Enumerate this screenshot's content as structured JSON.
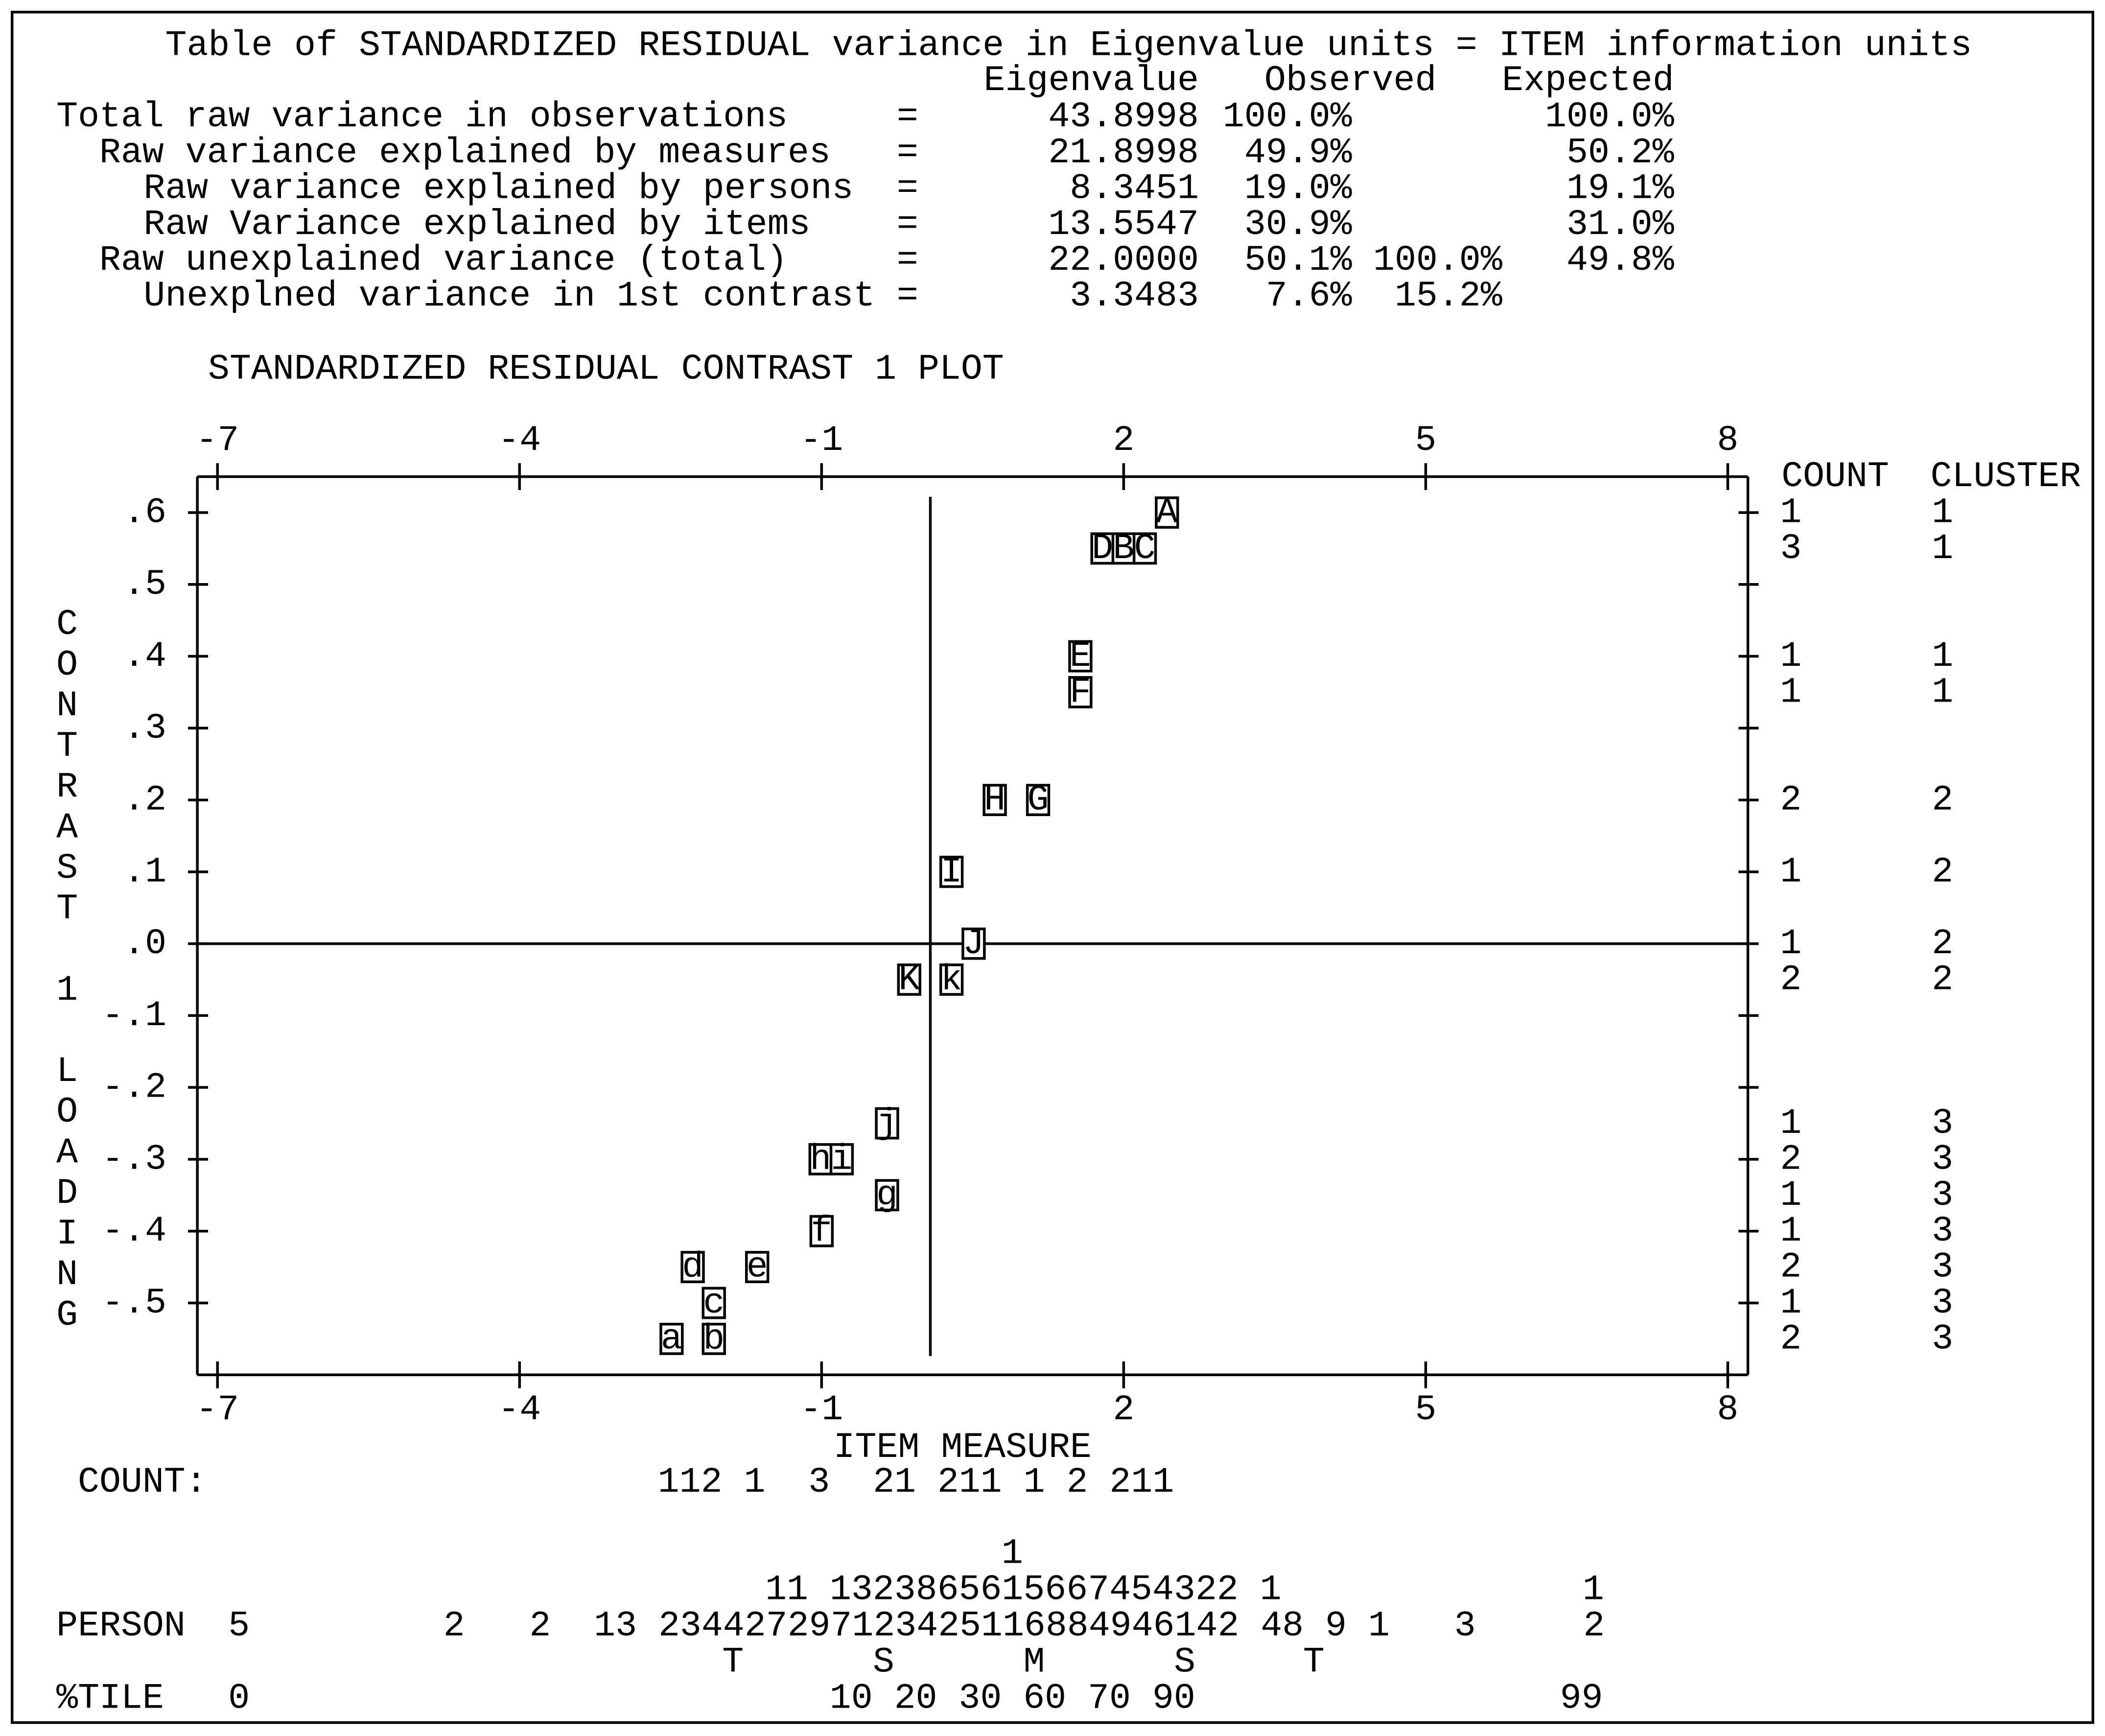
{
  "variance_table": {
    "title": "Table of STANDARDIZED RESIDUAL variance in Eigenvalue units = ITEM information units",
    "headers": [
      "Eigenvalue",
      "Observed",
      "Expected"
    ],
    "rows": [
      {
        "label": "Total raw variance in observations",
        "sign": "=",
        "eigenvalue": "43.8998",
        "observed": "100.0%",
        "expected": "100.0%"
      },
      {
        "label": "Raw variance explained by measures",
        "sign": "=",
        "eigenvalue": "21.8998",
        "observed": "49.9%",
        "expected": "50.2%"
      },
      {
        "label": "Raw variance explained by persons",
        "sign": "=",
        "eigenvalue": "8.3451",
        "observed": "19.0%",
        "expected": "19.1%"
      },
      {
        "label": "Raw Variance explained by items",
        "sign": "=",
        "eigenvalue": "13.5547",
        "observed": "30.9%",
        "expected": "31.0%"
      },
      {
        "label": "Raw unexplained variance (total)",
        "sign": "=",
        "eigenvalue": "22.0000",
        "observed": "50.1%",
        "unexplained": "100.0%",
        "expected": "49.8%"
      },
      {
        "label": "Unexplned variance in 1st contrast",
        "sign": "=",
        "eigenvalue": "3.3483",
        "observed": "7.6%",
        "unexplained": "15.2%"
      }
    ]
  },
  "chart_data": {
    "type": "scatter",
    "title": "STANDARDIZED RESIDUAL CONTRAST 1 PLOT",
    "x_label": "ITEM MEASURE",
    "y_label": "CONTRAST 1 LOADING",
    "xlim": [
      -7.2,
      8.2
    ],
    "ylim": [
      -0.6,
      0.65
    ],
    "xticks": [
      -7,
      -4,
      -1,
      2,
      5,
      8
    ],
    "yticks": [
      {
        "value": 0.6,
        "label": ".6"
      },
      {
        "value": 0.5,
        "label": ".5"
      },
      {
        "value": 0.4,
        "label": ".4"
      },
      {
        "value": 0.3,
        "label": ".3"
      },
      {
        "value": 0.2,
        "label": ".2"
      },
      {
        "value": 0.1,
        "label": ".1"
      },
      {
        "value": 0,
        "label": ".0"
      },
      {
        "value": -0.1,
        "label": "-.1"
      },
      {
        "value": -0.2,
        "label": "-.2"
      },
      {
        "value": -0.3,
        "label": "-.3"
      },
      {
        "value": -0.4,
        "label": "-.4"
      },
      {
        "value": -0.5,
        "label": "-.5"
      }
    ],
    "reference_x": 0.08,
    "reference_y": 0,
    "points": {
      "labels": [
        "A",
        "D",
        "B",
        "C",
        "E",
        "F",
        "H",
        "G",
        "I",
        "J",
        "K",
        "k",
        "j",
        "h",
        "i",
        "g",
        "f",
        "d",
        "e",
        "c",
        "a",
        "b"
      ],
      "x": [
        2.43,
        1.79,
        2.0,
        2.21,
        1.57,
        1.57,
        0.72,
        1.15,
        0.29,
        0.51,
        -0.13,
        0.29,
        -0.35,
        -1.01,
        -0.8,
        -0.35,
        -1.0,
        -2.28,
        -1.64,
        -2.07,
        -2.49,
        -2.07
      ],
      "y": [
        0.6,
        0.55,
        0.55,
        0.55,
        0.4,
        0.35,
        0.2,
        0.2,
        0.1,
        0,
        -0.05,
        -0.05,
        -0.25,
        -0.3,
        -0.3,
        -0.35,
        -0.4,
        -0.45,
        -0.45,
        -0.5,
        -0.55,
        -0.55
      ]
    },
    "side_headers": [
      "COUNT",
      "CLUSTER"
    ],
    "side_rows": [
      {
        "loading": 0.6,
        "count": 1,
        "cluster": 1
      },
      {
        "loading": 0.55,
        "count": 3,
        "cluster": 1
      },
      {
        "loading": 0.4,
        "count": 1,
        "cluster": 1
      },
      {
        "loading": 0.35,
        "count": 1,
        "cluster": 1
      },
      {
        "loading": 0.2,
        "count": 2,
        "cluster": 2
      },
      {
        "loading": 0.1,
        "count": 1,
        "cluster": 2
      },
      {
        "loading": 0,
        "count": 1,
        "cluster": 2
      },
      {
        "loading": -0.05,
        "count": 2,
        "cluster": 2
      },
      {
        "loading": -0.25,
        "count": 1,
        "cluster": 3
      },
      {
        "loading": -0.3,
        "count": 2,
        "cluster": 3
      },
      {
        "loading": -0.35,
        "count": 1,
        "cluster": 3
      },
      {
        "loading": -0.4,
        "count": 1,
        "cluster": 3
      },
      {
        "loading": -0.45,
        "count": 2,
        "cluster": 3
      },
      {
        "loading": -0.5,
        "count": 1,
        "cluster": 3
      },
      {
        "loading": -0.55,
        "count": 2,
        "cluster": 3
      }
    ]
  },
  "distribution": {
    "count_label": "COUNT:",
    "count_values": "112 1  3  21 211 1 2 211",
    "person_top": [
      "1",
      "11 1323865615667454322 1              1"
    ],
    "person_label": "PERSON",
    "person_values": "5         2   2  13 234427297123425116884946142 48 9 1   3     2",
    "markers": "T      S      M      S     T",
    "percentile_label": "%TILE",
    "percentile_values": [
      "0",
      "10 20 30 60 70 90",
      "99"
    ]
  }
}
